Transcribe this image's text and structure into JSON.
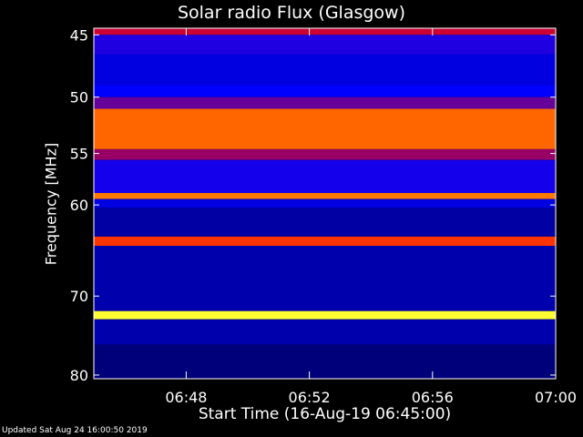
{
  "chart_data": {
    "type": "heatmap",
    "title": "Solar radio Flux (Glasgow)",
    "xlabel": "Start Time (16-Aug-19 06:45:00)",
    "ylabel": "Frequency [MHz]",
    "x_range": [
      "06:45",
      "07:00"
    ],
    "x_ticks": [
      "06:48",
      "06:52",
      "06:56",
      "07:00"
    ],
    "y_range": [
      44.5,
      80.5
    ],
    "y_ticks": [
      45,
      50,
      55,
      60,
      70,
      80
    ],
    "y_reversed": true,
    "y_scale": "log",
    "grid": false,
    "colormap": [
      "#000000",
      "#0000ff",
      "#ff0000",
      "#ffff00",
      "#ffffff"
    ],
    "bands": [
      {
        "from_mhz": 44.5,
        "to_mhz": 45.0,
        "intensity": 0.45
      },
      {
        "from_mhz": 45.0,
        "to_mhz": 46.5,
        "intensity": 0.28
      },
      {
        "from_mhz": 46.5,
        "to_mhz": 49.0,
        "intensity": 0.22
      },
      {
        "from_mhz": 49.0,
        "to_mhz": 50.0,
        "intensity": 0.25
      },
      {
        "from_mhz": 50.0,
        "to_mhz": 51.0,
        "intensity": 0.35
      },
      {
        "from_mhz": 51.0,
        "to_mhz": 54.6,
        "intensity": 0.6
      },
      {
        "from_mhz": 54.6,
        "to_mhz": 55.6,
        "intensity": 0.4
      },
      {
        "from_mhz": 55.6,
        "to_mhz": 58.8,
        "intensity": 0.27
      },
      {
        "from_mhz": 58.8,
        "to_mhz": 59.4,
        "intensity": 0.62
      },
      {
        "from_mhz": 59.4,
        "to_mhz": 60.3,
        "intensity": 0.22
      },
      {
        "from_mhz": 60.3,
        "to_mhz": 63.3,
        "intensity": 0.16
      },
      {
        "from_mhz": 63.3,
        "to_mhz": 64.3,
        "intensity": 0.55
      },
      {
        "from_mhz": 64.3,
        "to_mhz": 71.8,
        "intensity": 0.17
      },
      {
        "from_mhz": 71.8,
        "to_mhz": 72.8,
        "intensity": 0.8
      },
      {
        "from_mhz": 72.8,
        "to_mhz": 76.0,
        "intensity": 0.17
      },
      {
        "from_mhz": 76.0,
        "to_mhz": 80.5,
        "intensity": 0.12
      }
    ]
  },
  "footer": "Updated Sat Aug 24 16:00:50 2019"
}
